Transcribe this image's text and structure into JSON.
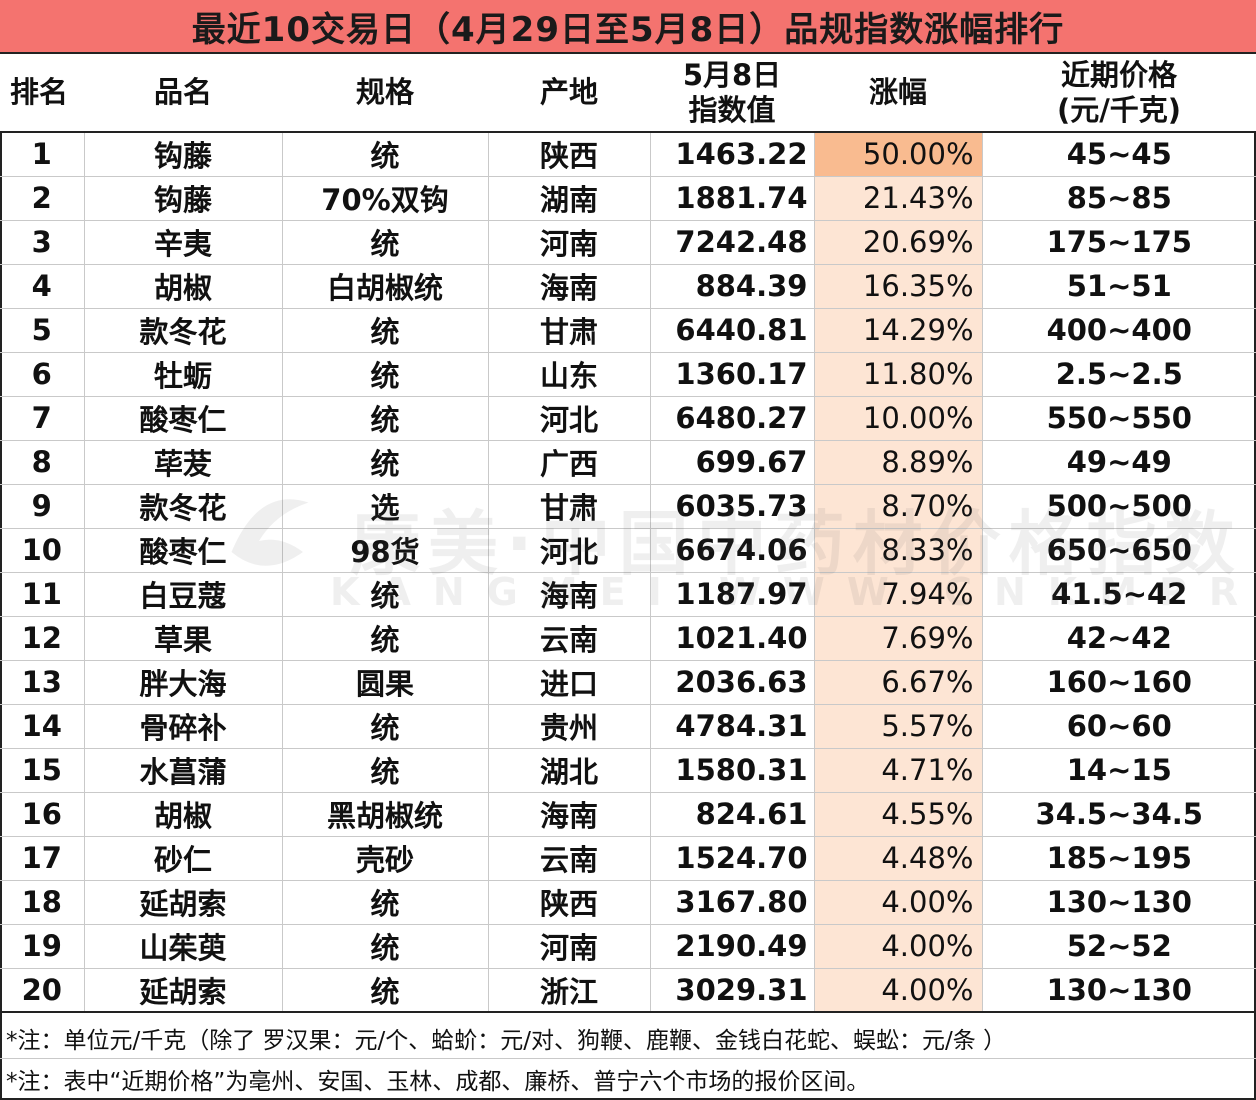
{
  "title": "最近10交易日（4月29日至5月8日）品规指数涨幅排行",
  "headers": {
    "rank": "排名",
    "name": "品名",
    "spec": "规格",
    "origin": "产地",
    "index_line1": "5月8日",
    "index_line2": "指数值",
    "change": "涨幅",
    "price_line1": "近期价格",
    "price_line2": "(元/千克)"
  },
  "rows": [
    {
      "rank": "1",
      "name": "钩藤",
      "spec": "统",
      "origin": "陕西",
      "index": "1463.22",
      "change": "50.00%",
      "price": "45~45"
    },
    {
      "rank": "2",
      "name": "钩藤",
      "spec": "70%双钩",
      "origin": "湖南",
      "index": "1881.74",
      "change": "21.43%",
      "price": "85~85"
    },
    {
      "rank": "3",
      "name": "辛夷",
      "spec": "统",
      "origin": "河南",
      "index": "7242.48",
      "change": "20.69%",
      "price": "175~175"
    },
    {
      "rank": "4",
      "name": "胡椒",
      "spec": "白胡椒统",
      "origin": "海南",
      "index": "884.39",
      "change": "16.35%",
      "price": "51~51"
    },
    {
      "rank": "5",
      "name": "款冬花",
      "spec": "统",
      "origin": "甘肃",
      "index": "6440.81",
      "change": "14.29%",
      "price": "400~400"
    },
    {
      "rank": "6",
      "name": "牡蛎",
      "spec": "统",
      "origin": "山东",
      "index": "1360.17",
      "change": "11.80%",
      "price": "2.5~2.5"
    },
    {
      "rank": "7",
      "name": "酸枣仁",
      "spec": "统",
      "origin": "河北",
      "index": "6480.27",
      "change": "10.00%",
      "price": "550~550"
    },
    {
      "rank": "8",
      "name": "荜茇",
      "spec": "统",
      "origin": "广西",
      "index": "699.67",
      "change": "8.89%",
      "price": "49~49"
    },
    {
      "rank": "9",
      "name": "款冬花",
      "spec": "选",
      "origin": "甘肃",
      "index": "6035.73",
      "change": "8.70%",
      "price": "500~500"
    },
    {
      "rank": "10",
      "name": "酸枣仁",
      "spec": "98货",
      "origin": "河北",
      "index": "6674.06",
      "change": "8.33%",
      "price": "650~650"
    },
    {
      "rank": "11",
      "name": "白豆蔻",
      "spec": "统",
      "origin": "海南",
      "index": "1187.97",
      "change": "7.94%",
      "price": "41.5~42"
    },
    {
      "rank": "12",
      "name": "草果",
      "spec": "统",
      "origin": "云南",
      "index": "1021.40",
      "change": "7.69%",
      "price": "42~42"
    },
    {
      "rank": "13",
      "name": "胖大海",
      "spec": "圆果",
      "origin": "进口",
      "index": "2036.63",
      "change": "6.67%",
      "price": "160~160"
    },
    {
      "rank": "14",
      "name": "骨碎补",
      "spec": "统",
      "origin": "贵州",
      "index": "4784.31",
      "change": "5.57%",
      "price": "60~60"
    },
    {
      "rank": "15",
      "name": "水菖蒲",
      "spec": "统",
      "origin": "湖北",
      "index": "1580.31",
      "change": "4.71%",
      "price": "14~15"
    },
    {
      "rank": "16",
      "name": "胡椒",
      "spec": "黑胡椒统",
      "origin": "海南",
      "index": "824.61",
      "change": "4.55%",
      "price": "34.5~34.5"
    },
    {
      "rank": "17",
      "name": "砂仁",
      "spec": "壳砂",
      "origin": "云南",
      "index": "1524.70",
      "change": "4.48%",
      "price": "185~195"
    },
    {
      "rank": "18",
      "name": "延胡索",
      "spec": "统",
      "origin": "陕西",
      "index": "3167.80",
      "change": "4.00%",
      "price": "130~130"
    },
    {
      "rank": "19",
      "name": "山茱萸",
      "spec": "统",
      "origin": "河南",
      "index": "2190.49",
      "change": "4.00%",
      "price": "52~52"
    },
    {
      "rank": "20",
      "name": "延胡索",
      "spec": "统",
      "origin": "浙江",
      "index": "3029.31",
      "change": "4.00%",
      "price": "130~130"
    }
  ],
  "notes": [
    "*注：单位元/千克（除了 罗汉果：元/个、蛤蚧：元/对、狗鞭、鹿鞭、金钱白花蛇、蜈蚣：元/条 ）",
    "*注：表中“近期价格”为亳州、安国、玉林、成都、廉桥、普宁六个市场的报价区间。"
  ],
  "watermark": {
    "text": "康美·中国中药材价格指数",
    "url": "KANGMEI WWW.CNKMPRICE.COM"
  },
  "colors": {
    "title_bg": "#f4736f",
    "highlight_top": "#f9bb90",
    "highlight_col": "#fde5d4"
  }
}
